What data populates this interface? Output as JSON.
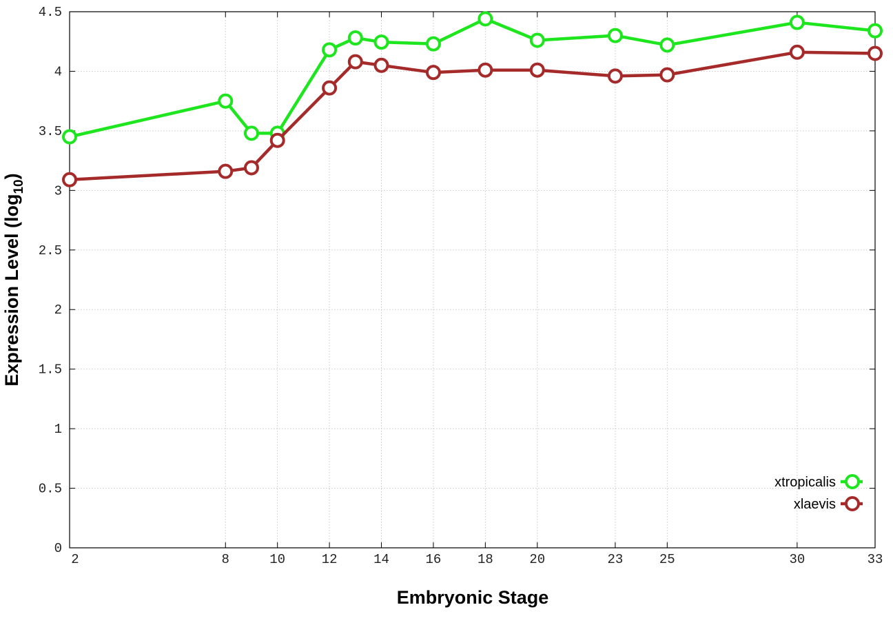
{
  "chart_data": {
    "type": "line",
    "x_label": "Embryonic Stage",
    "y_label": [
      "Expression Level (log",
      "10",
      ")"
    ],
    "x": [
      2,
      8,
      9,
      10,
      12,
      13,
      14,
      16,
      18,
      20,
      23,
      25,
      30,
      33
    ],
    "series": [
      {
        "name": "xtropicalis",
        "color": "#1ee61e",
        "values": [
          3.45,
          3.75,
          3.48,
          3.48,
          4.18,
          4.28,
          4.245,
          4.23,
          4.44,
          4.26,
          4.3,
          4.22,
          4.41,
          4.34
        ]
      },
      {
        "name": "xlaevis",
        "color": "#a52a2a",
        "values": [
          3.09,
          3.16,
          3.19,
          3.42,
          3.86,
          4.08,
          4.05,
          3.99,
          4.01,
          4.01,
          3.96,
          3.97,
          4.16,
          4.15
        ]
      }
    ],
    "xlim": [
      2,
      33
    ],
    "xticks": [
      2,
      8,
      10,
      12,
      14,
      16,
      18,
      20,
      23,
      25,
      30,
      33
    ],
    "ylim": [
      0,
      4.5
    ],
    "yticks": [
      0,
      0.5,
      1,
      1.5,
      2,
      2.5,
      3,
      3.5,
      4,
      4.5
    ],
    "grid": true,
    "legend": "bottom-right"
  }
}
